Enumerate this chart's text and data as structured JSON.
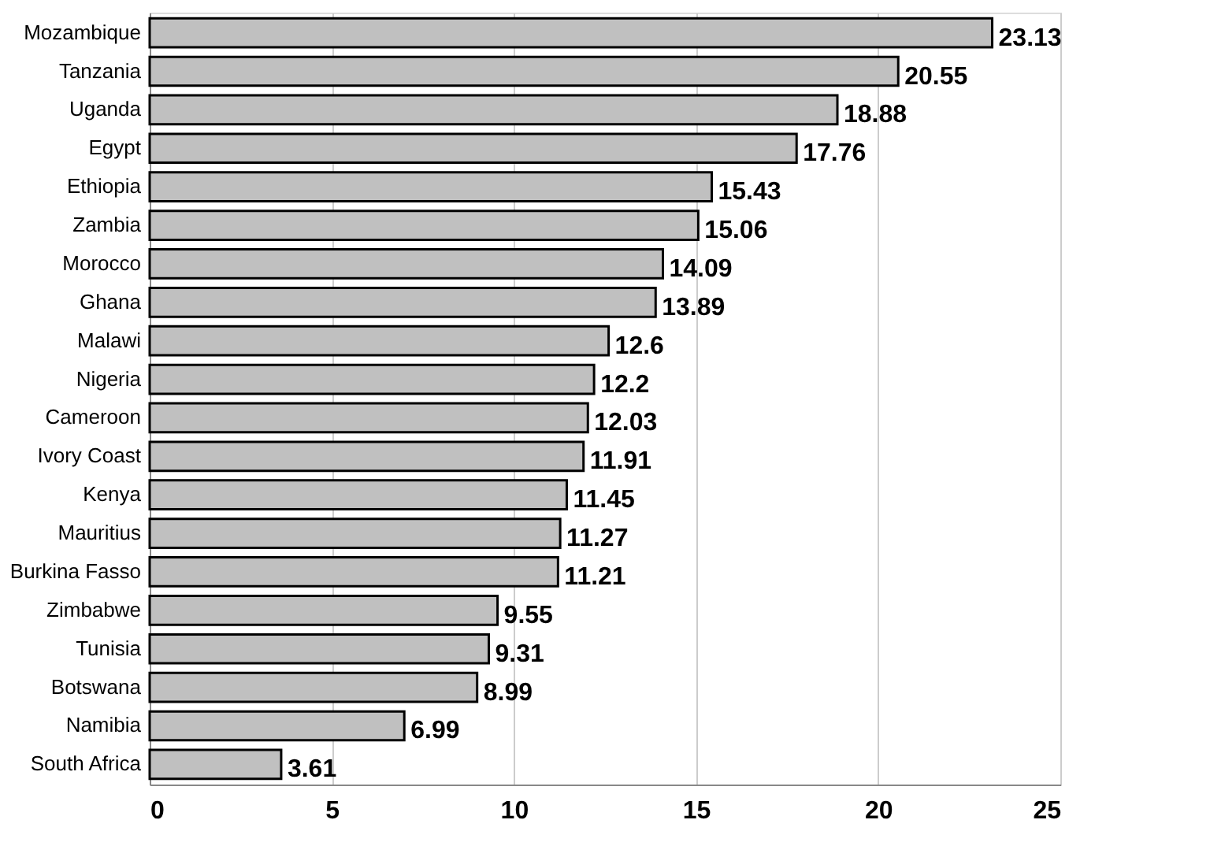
{
  "chart_data": {
    "type": "bar",
    "orientation": "horizontal",
    "categories": [
      "Mozambique",
      "Tanzania",
      "Uganda",
      "Egypt",
      "Ethiopia",
      "Zambia",
      "Morocco",
      "Ghana",
      "Malawi",
      "Nigeria",
      "Cameroon",
      "Ivory Coast",
      "Kenya",
      "Mauritius",
      "Burkina Fasso",
      "Zimbabwe",
      "Tunisia",
      "Botswana",
      "Namibia",
      "South Africa"
    ],
    "values": [
      23.13,
      20.55,
      18.88,
      17.76,
      15.43,
      15.06,
      14.09,
      13.89,
      12.6,
      12.2,
      12.03,
      11.91,
      11.45,
      11.27,
      11.21,
      9.55,
      9.31,
      8.99,
      6.99,
      3.61
    ],
    "color": "#c0c0c0",
    "xlim": [
      0,
      25
    ],
    "xticks": [
      0,
      5,
      10,
      15,
      20,
      25
    ],
    "grid": "x",
    "data_labels": true
  }
}
